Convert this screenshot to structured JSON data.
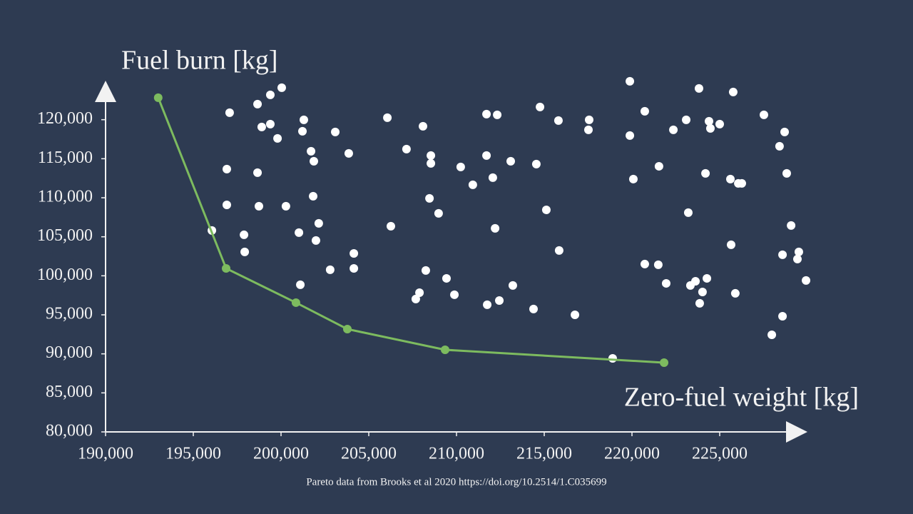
{
  "chart_data": {
    "type": "scatter",
    "y_label": "Fuel burn [kg]",
    "x_label": "Zero-fuel weight [kg]",
    "caption": "Pareto data from Brooks et al 2020 https://doi.org/10.2514/1.C035699",
    "xlim": [
      190000,
      230000
    ],
    "ylim": [
      80000,
      125000
    ],
    "xticks": [
      {
        "value": 190000,
        "label": "190,000"
      },
      {
        "value": 195000,
        "label": "195,000"
      },
      {
        "value": 200000,
        "label": "200,000"
      },
      {
        "value": 205000,
        "label": "205,000"
      },
      {
        "value": 210000,
        "label": "210,000"
      },
      {
        "value": 215000,
        "label": "215,000"
      },
      {
        "value": 220000,
        "label": "220,000"
      },
      {
        "value": 225000,
        "label": "225,000"
      }
    ],
    "yticks": [
      {
        "value": 80000,
        "label": "80,000"
      },
      {
        "value": 85000,
        "label": "85,000"
      },
      {
        "value": 90000,
        "label": "90,000"
      },
      {
        "value": 95000,
        "label": "95,000"
      },
      {
        "value": 100000,
        "label": "100,000"
      },
      {
        "value": 105000,
        "label": "105,000"
      },
      {
        "value": 110000,
        "label": "110,000"
      },
      {
        "value": 115000,
        "label": "115,000"
      },
      {
        "value": 120000,
        "label": "120,000"
      }
    ],
    "grid": false,
    "series": [
      {
        "color": "#ffffff",
        "mode": "markers",
        "x": [
          196060,
          197070,
          196910,
          196910,
          197890,
          197930,
          198660,
          198900,
          199390,
          199390,
          198660,
          198740,
          199800,
          200040,
          200280,
          201300,
          201220,
          201710,
          201870,
          201830,
          202150,
          201020,
          201990,
          201100,
          202800,
          203090,
          203860,
          204150,
          204150,
          206060,
          206260,
          207150,
          208090,
          208540,
          208540,
          208460,
          208980,
          208250,
          207890,
          207680,
          209430,
          209880,
          210240,
          210930,
          211710,
          212320,
          211710,
          212070,
          212200,
          211750,
          212440,
          213090,
          213210,
          214760,
          214550,
          215120,
          214390,
          215810,
          215850,
          216750,
          217560,
          217520,
          219880,
          219880,
          220080,
          220730,
          220730,
          221540,
          221500,
          221950,
          218900,
          222360,
          223090,
          223820,
          223210,
          223330,
          223620,
          224190,
          224390,
          224470,
          225000,
          224270,
          224020,
          223860,
          225770,
          225610,
          226060,
          226260,
          225650,
          225890,
          227520,
          228410,
          228700,
          228820,
          229070,
          228580,
          229430,
          229510,
          229920,
          228580,
          227970
        ],
        "values": [
          105800,
          120900,
          113670,
          109090,
          105250,
          103060,
          121990,
          119070,
          123180,
          119430,
          113210,
          108910,
          117600,
          124100,
          108910,
          119980,
          118520,
          115960,
          114680,
          110190,
          106720,
          105530,
          104520,
          98850,
          100770,
          118430,
          115680,
          102870,
          100950,
          120260,
          106350,
          116230,
          119160,
          115410,
          114400,
          109920,
          108000,
          100680,
          97840,
          97020,
          99670,
          97570,
          113940,
          111660,
          120710,
          120620,
          115410,
          112570,
          106080,
          96290,
          96830,
          114680,
          98760,
          121630,
          114310,
          108450,
          95740,
          119890,
          103240,
          95000,
          119980,
          118700,
          124920,
          117970,
          112390,
          121080,
          101500,
          114030,
          101410,
          99030,
          89420,
          118700,
          119980,
          124010,
          108090,
          98760,
          99300,
          113120,
          119800,
          118880,
          119430,
          99670,
          97930,
          96470,
          123550,
          112390,
          111840,
          111840,
          103970,
          97750,
          120620,
          116600,
          118430,
          113120,
          106440,
          102690,
          102140,
          103060,
          99400,
          94820,
          92440
        ]
      },
      {
        "color": "#7dbb5f",
        "mode": "lines+markers",
        "x": [
          193000,
          196870,
          200850,
          203780,
          209350,
          221830
        ],
        "values": [
          122820,
          100950,
          96560,
          93170,
          90520,
          88870
        ]
      }
    ]
  }
}
